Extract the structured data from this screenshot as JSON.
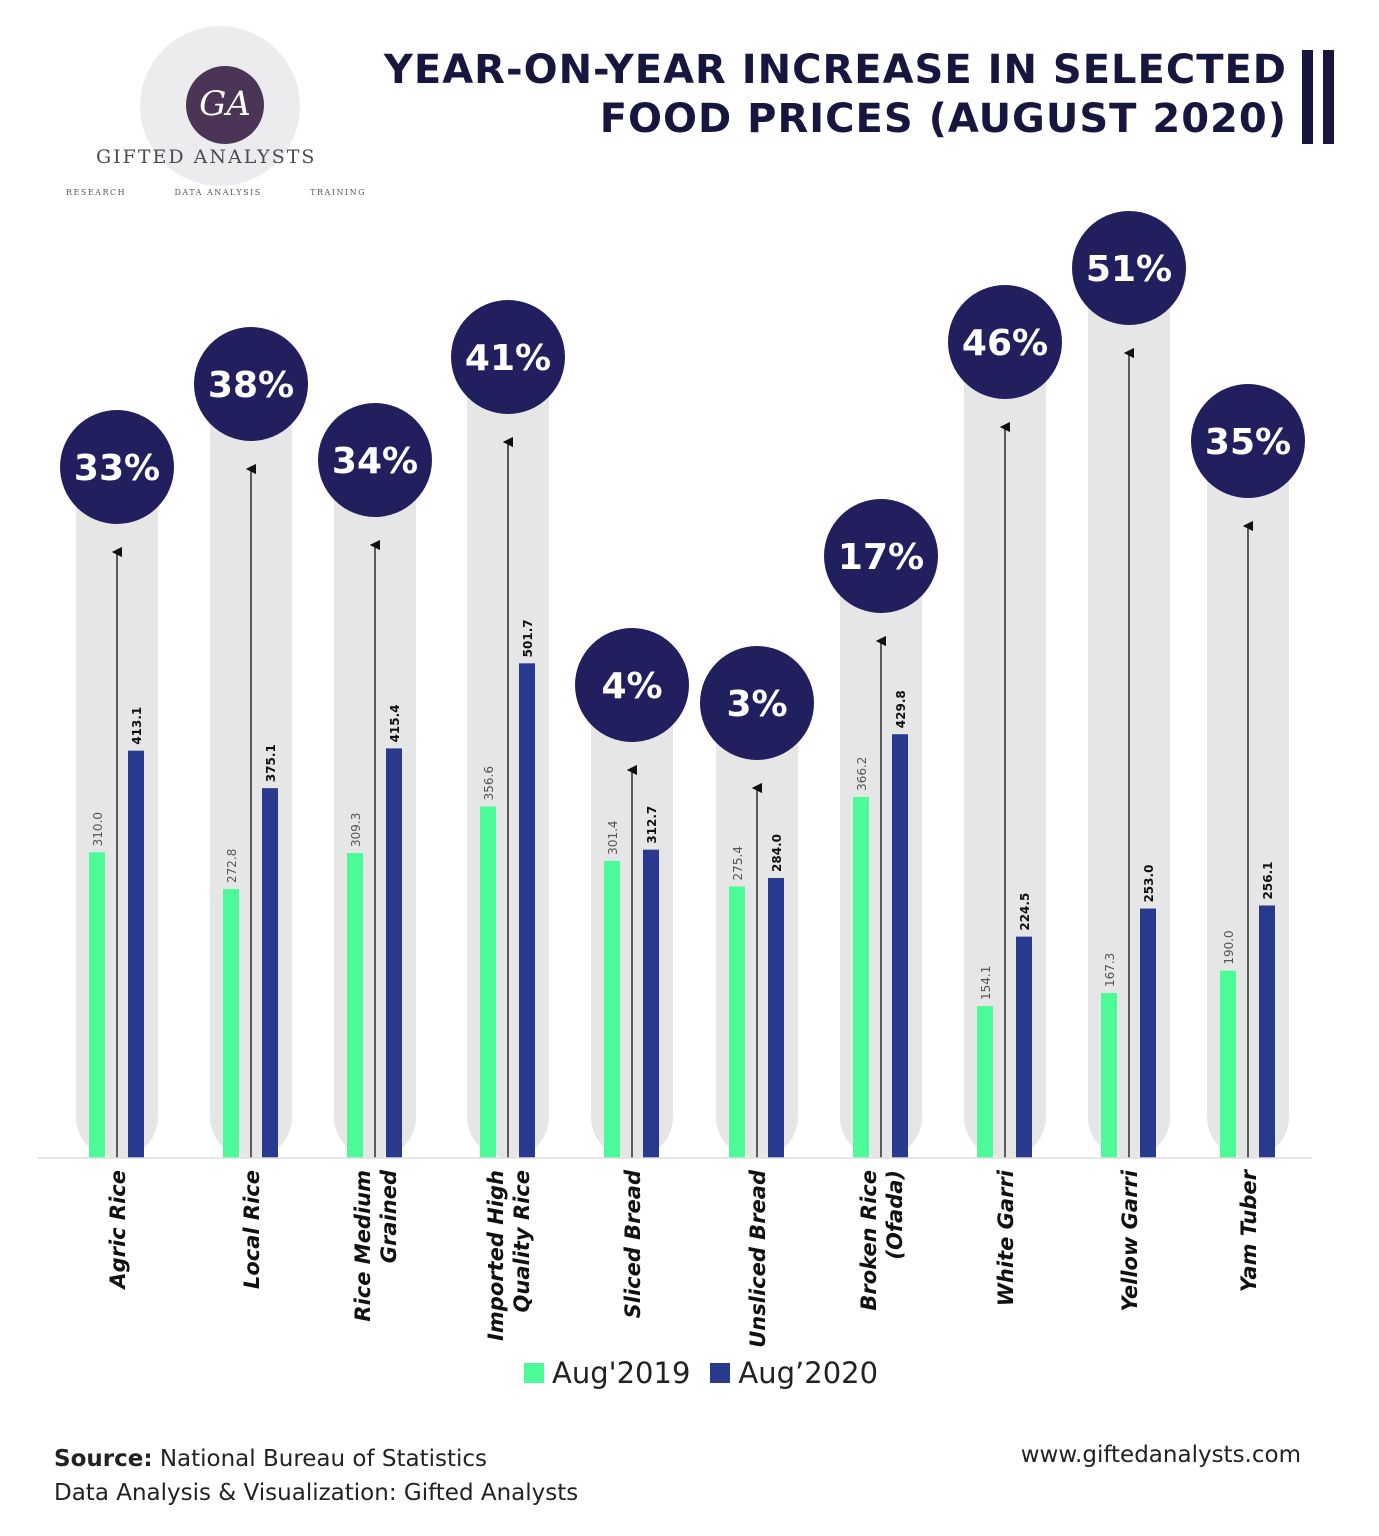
{
  "header": {
    "title_line1": "YEAR-ON-YEAR INCREASE IN SELECTED",
    "title_line2": "FOOD PRICES (AUGUST 2020)"
  },
  "logo": {
    "monogram": "GA",
    "name": "GIFTED ANALYSTS",
    "tags": [
      "RESEARCH",
      "DATA ANALYSIS",
      "TRAINING"
    ]
  },
  "chart_data": {
    "type": "bar",
    "title": "YEAR-ON-YEAR INCREASE IN SELECTED FOOD PRICES (AUGUST 2020)",
    "categories": [
      "Agric Rice",
      "Local Rice",
      "Rice Medium Grained",
      "Imported High Quality Rice",
      "Sliced Bread",
      "Unsliced Bread",
      "Broken Rice (Ofada)",
      "White Garri",
      "Yellow Garri",
      "Yam Tuber"
    ],
    "category_lines": [
      [
        "Agric Rice"
      ],
      [
        "Local Rice"
      ],
      [
        "Rice Medium",
        "Grained"
      ],
      [
        "Imported High",
        "Quality Rice"
      ],
      [
        "Sliced Bread"
      ],
      [
        "Unsliced Bread"
      ],
      [
        "Broken Rice",
        "(Ofada)"
      ],
      [
        "White Garri"
      ],
      [
        "Yellow Garri"
      ],
      [
        "Yam Tuber"
      ]
    ],
    "series": [
      {
        "name": "Aug'2019",
        "color": "#4dfa98",
        "values": [
          310.0,
          272.8,
          309.3,
          356.6,
          301.4,
          275.4,
          366.2,
          154.1,
          167.3,
          190.0
        ],
        "labels": [
          "310.0",
          "272.8",
          "309.3",
          "356.6",
          "301.4",
          "275.4",
          "366.2",
          "154.1",
          "167.3",
          "190.0"
        ]
      },
      {
        "name": "Aug’2020",
        "color": "#283a8e",
        "values": [
          413.1,
          375.1,
          415.4,
          501.7,
          312.7,
          284.0,
          429.8,
          224.5,
          253.0,
          256.1
        ],
        "labels": [
          "413.1",
          "375.1",
          "415.4",
          "501.7",
          "312.7",
          "284.0",
          "429.8",
          "224.5",
          "253.0",
          "256.1"
        ]
      }
    ],
    "increase_labels": [
      "33%",
      "38%",
      "34%",
      "41%",
      "4%",
      "3%",
      "17%",
      "46%",
      "51%",
      "35%"
    ],
    "increase_color": "#221f5e",
    "ylim": [
      0,
      520
    ],
    "grid": false,
    "legend_position": "bottom"
  },
  "footer": {
    "source_label": "Source:",
    "source_text": " National Bureau of Statistics",
    "credit": "Data Analysis & Visualization: Gifted Analysts",
    "website": "www.giftedanalysts.com"
  }
}
